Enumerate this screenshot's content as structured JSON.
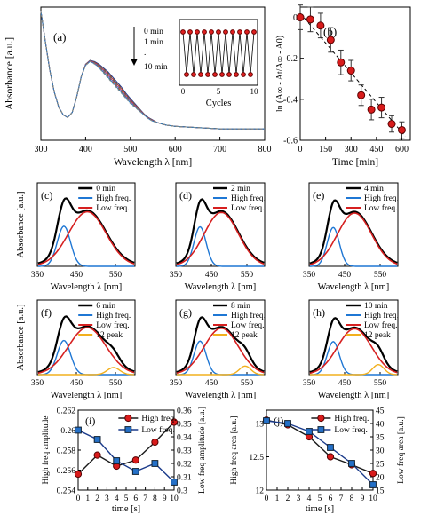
{
  "chart_data": [
    {
      "id": "a",
      "type": "line",
      "panel_label": "(a)",
      "xlabel": "Wavelength λ [nm]",
      "ylabel": "Absorbance [a.u.]",
      "xlim": [
        300,
        800
      ],
      "xticks": [
        300,
        400,
        500,
        600,
        700,
        800
      ],
      "ylim": [
        0,
        1.05
      ],
      "time_labels": [
        "0 min",
        "1 min",
        ".",
        "10 min"
      ],
      "spectra_color_order": [
        "#1f3a93",
        "#555555",
        "#c0392b",
        "#2e8b57",
        "#8e44ad",
        "#d35400",
        "#2c7fb8",
        "#7f8c8d"
      ],
      "spectrum_x": [
        300,
        310,
        320,
        330,
        340,
        350,
        360,
        370,
        380,
        390,
        400,
        410,
        420,
        430,
        440,
        450,
        460,
        470,
        480,
        490,
        500,
        510,
        520,
        530,
        540,
        550,
        560,
        580,
        600,
        650,
        700,
        750,
        800
      ],
      "spectrum_y_0min": [
        1.02,
        0.78,
        0.55,
        0.38,
        0.26,
        0.2,
        0.18,
        0.22,
        0.34,
        0.5,
        0.6,
        0.63,
        0.62,
        0.6,
        0.57,
        0.54,
        0.5,
        0.46,
        0.42,
        0.37,
        0.33,
        0.29,
        0.25,
        0.21,
        0.18,
        0.16,
        0.14,
        0.12,
        0.11,
        0.1,
        0.09,
        0.09,
        0.09
      ],
      "spectrum_y_10min": [
        1.02,
        0.78,
        0.55,
        0.38,
        0.26,
        0.2,
        0.18,
        0.22,
        0.34,
        0.5,
        0.59,
        0.62,
        0.6,
        0.57,
        0.53,
        0.49,
        0.45,
        0.41,
        0.37,
        0.33,
        0.29,
        0.26,
        0.23,
        0.2,
        0.17,
        0.15,
        0.14,
        0.12,
        0.11,
        0.1,
        0.09,
        0.09,
        0.09
      ],
      "inset": {
        "xlabel": "Cycles",
        "xticks": [
          0,
          5,
          10
        ],
        "cycles": 10
      }
    },
    {
      "id": "b",
      "type": "scatter",
      "panel_label": "(b)",
      "xlabel": "Time [min]",
      "ylabel": "ln (A∞ - At/A∞ - A0)",
      "xlim": [
        0,
        650
      ],
      "xticks": [
        0,
        150,
        300,
        450,
        600
      ],
      "ylim": [
        -0.6,
        0.05
      ],
      "yticks": [
        0,
        -0.2,
        -0.4,
        -0.6
      ],
      "x": [
        0,
        60,
        120,
        180,
        240,
        300,
        360,
        420,
        480,
        540,
        600
      ],
      "y": [
        0,
        -0.01,
        -0.04,
        -0.11,
        -0.22,
        -0.26,
        -0.38,
        -0.45,
        -0.44,
        -0.52,
        -0.55
      ],
      "error": [
        0.06,
        0.06,
        0.06,
        0.06,
        0.06,
        0.05,
        0.05,
        0.05,
        0.05,
        0.04,
        0.04
      ],
      "fit_line": {
        "x": [
          0,
          620
        ],
        "y": [
          0.02,
          -0.58
        ]
      }
    },
    {
      "id": "c",
      "type": "line",
      "panel_label": "(c)",
      "legend_title": "0 min",
      "legend": [
        "High freq.",
        "Low freq."
      ],
      "xticks": [
        350,
        450,
        550
      ],
      "xlabel": "Wavelength λ [nm]",
      "peak12": 0
    },
    {
      "id": "d",
      "type": "line",
      "panel_label": "(d)",
      "legend_title": "2 min",
      "legend": [
        "High freq.",
        "Low freq."
      ],
      "xticks": [
        350,
        450,
        550
      ],
      "xlabel": "Wavelength λ [nm]",
      "peak12": 0
    },
    {
      "id": "e",
      "type": "line",
      "panel_label": "(e)",
      "legend_title": "4 min",
      "legend": [
        "High freq.",
        "Low freq."
      ],
      "xticks": [
        350,
        450,
        550
      ],
      "xlabel": "Wavelength λ [nm]",
      "peak12": 0
    },
    {
      "id": "f",
      "type": "line",
      "panel_label": "(f)",
      "legend_title": "6 min",
      "legend": [
        "High freq.",
        "Low freq.",
        "12 peak"
      ],
      "xticks": [
        350,
        450,
        550
      ],
      "xlabel": "Wavelength λ [nm]",
      "peak12": 0.05
    },
    {
      "id": "g",
      "type": "line",
      "panel_label": "(g)",
      "legend_title": "8 min",
      "legend": [
        "High freq.",
        "Low freq.",
        "12 peak"
      ],
      "xticks": [
        350,
        450,
        550
      ],
      "xlabel": "Wavelength λ [nm]",
      "peak12": 0.06
    },
    {
      "id": "h",
      "type": "line",
      "panel_label": "(h)",
      "legend_title": "10 min",
      "legend": [
        "High freq.",
        "Low freq.",
        "12 peak"
      ],
      "xticks": [
        350,
        450,
        550
      ],
      "xlabel": "Wavelength λ [nm]",
      "peak12": 0.07
    },
    {
      "id": "i",
      "type": "line",
      "panel_label": "(i)",
      "xlabel": "time [s]",
      "ylabel_left": "High freq amplitude",
      "ylabel_right": "Low freq amplitude [a.u.]",
      "legend": [
        "High freq.",
        "Low freq."
      ],
      "x": [
        0,
        2,
        4,
        6,
        8,
        10
      ],
      "xticks": [
        0,
        1,
        2,
        3,
        4,
        5,
        6,
        7,
        8,
        9,
        10
      ],
      "ylim_left": [
        0.254,
        0.262
      ],
      "yticks_left": [
        0.254,
        0.256,
        0.258,
        0.26,
        0.262
      ],
      "ylim_right": [
        0.3,
        0.36
      ],
      "yticks_right": [
        0.3,
        0.31,
        0.32,
        0.33,
        0.34,
        0.35,
        0.36
      ],
      "series": [
        {
          "name": "High freq.",
          "axis": "left",
          "values": [
            0.2556,
            0.2575,
            0.2564,
            0.257,
            0.2588,
            0.2608
          ]
        },
        {
          "name": "Low freq.",
          "axis": "right",
          "values": [
            0.345,
            0.338,
            0.322,
            0.314,
            0.32,
            0.306
          ]
        }
      ]
    },
    {
      "id": "j",
      "type": "line",
      "panel_label": "(j)",
      "xlabel": "time [s]",
      "ylabel_left": "High freq area [a.u.]",
      "ylabel_right": "Low freq area [a.u.]",
      "legend": [
        "High freq.",
        "Low freq."
      ],
      "x": [
        0,
        2,
        4,
        6,
        8,
        10
      ],
      "xticks": [
        0,
        1,
        2,
        3,
        4,
        5,
        6,
        7,
        8,
        9,
        10
      ],
      "ylim_left": [
        12,
        13.2
      ],
      "yticks_left": [
        12,
        12.5,
        13
      ],
      "ylim_right": [
        15,
        45
      ],
      "yticks_right": [
        15,
        20,
        25,
        30,
        35,
        40,
        45
      ],
      "series": [
        {
          "name": "High freq.",
          "axis": "left",
          "values": [
            13.05,
            12.98,
            12.8,
            12.5,
            12.38,
            12.25
          ]
        },
        {
          "name": "Low freq.",
          "axis": "right",
          "values": [
            41,
            40,
            37,
            31,
            25,
            17
          ]
        }
      ]
    }
  ]
}
